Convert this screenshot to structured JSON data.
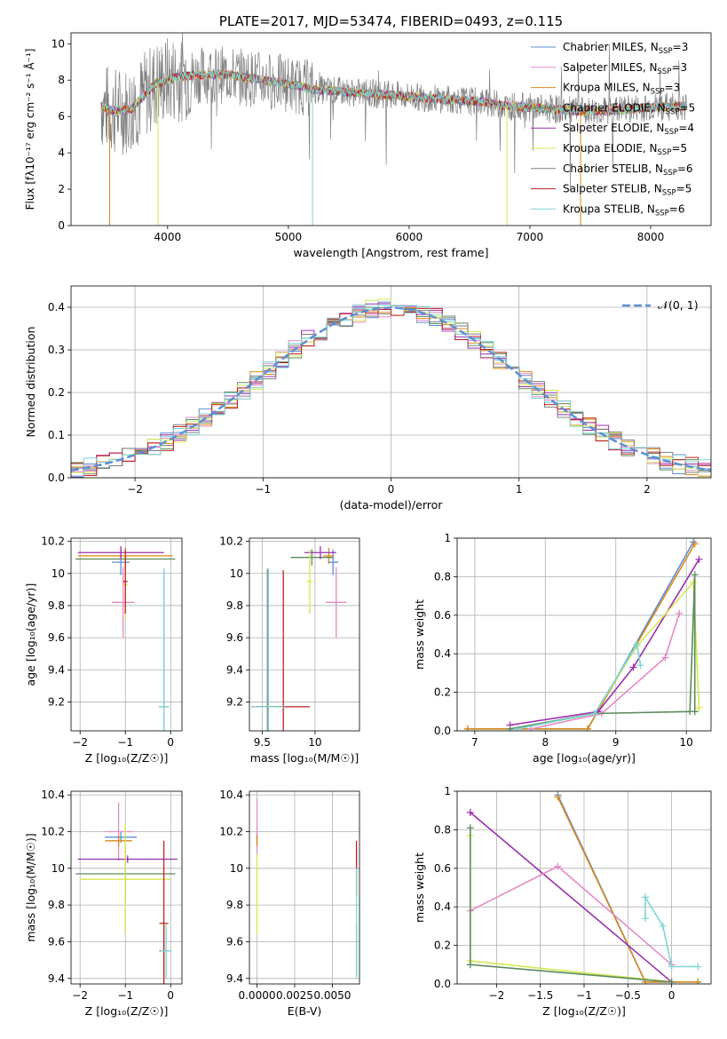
{
  "colors": {
    "Chabrier MILES": "#5b8fd6",
    "Salpeter MILES": "#e48bc6",
    "Kroupa MILES": "#d98a1a",
    "Chabrier ELODIE": "#5c8a5c",
    "Salpeter ELODIE": "#9a2fb0",
    "Kroupa ELODIE": "#d4e84e",
    "Chabrier STELIB": "#808080",
    "Salpeter STELIB": "#c02020",
    "Kroupa STELIB": "#7fd6d6",
    "normal": "#5b8fd6"
  },
  "chart_data": [
    {
      "id": "spectrum",
      "type": "line",
      "title": "PLATE=2017, MJD=53474, FIBERID=0493, z=0.115",
      "xlabel": "wavelength [Angstrom, rest frame]",
      "ylabel": "Flux [fλ10⁻¹⁷ erg cm⁻² s⁻¹ Å⁻¹]",
      "xlim": [
        3200,
        8500
      ],
      "ylim": [
        0,
        10.6
      ],
      "xticks": [
        4000,
        5000,
        6000,
        7000,
        8000
      ],
      "yticks": [
        0,
        2,
        4,
        6,
        8,
        10
      ],
      "grid": false,
      "legend_position": "top-right",
      "legend": [
        "Chabrier MILES, N_SSP=3",
        "Salpeter MILES, N_SSP=3",
        "Kroupa MILES, N_SSP=3",
        "Chabrier ELODIE, N_SSP=5",
        "Salpeter ELODIE, N_SSP=4",
        "Kroupa ELODIE, N_SSP=5",
        "Chabrier STELIB, N_SSP=6",
        "Salpeter STELIB, N_SSP=5",
        "Kroupa STELIB, N_SSP=6"
      ],
      "data_continuum": {
        "x": [
          3450,
          3550,
          3700,
          3900,
          4100,
          4300,
          4500,
          4800,
          5000,
          5200,
          5400,
          5600,
          5800,
          6000,
          6200,
          6400,
          6600,
          6800,
          7000,
          7200,
          7400,
          7600,
          7800,
          8000,
          8300
        ],
        "y": [
          6.6,
          6.3,
          6.4,
          7.8,
          8.2,
          8.3,
          8.3,
          8.0,
          7.8,
          7.5,
          7.4,
          7.3,
          7.2,
          7.1,
          7.0,
          6.9,
          6.8,
          6.6,
          6.5,
          6.4,
          6.3,
          6.3,
          6.4,
          6.5,
          6.6
        ]
      }
    },
    {
      "id": "residuals",
      "type": "line",
      "xlabel": "(data-model)/error",
      "ylabel": "Normed distribution",
      "xlim": [
        -2.5,
        2.5
      ],
      "ylim": [
        0,
        0.45
      ],
      "xticks": [
        -2,
        -1,
        0,
        1,
        2
      ],
      "yticks": [
        0.0,
        0.1,
        0.2,
        0.3,
        0.4
      ],
      "grid": true,
      "legend_position": "top-right",
      "legend": [
        "𝒩(0, 1)"
      ],
      "normal": {
        "mean": 0,
        "std": 1,
        "amplitude": 0.399
      }
    },
    {
      "id": "age-vs-Z",
      "type": "scatter",
      "xlabel": "Z [log₁₀(Z/Z☉)]",
      "ylabel": "age  [log₁₀(age/yr)]",
      "xlim": [
        -2.2,
        0.25
      ],
      "ylim": [
        9.02,
        10.22
      ],
      "xticks": [
        -2,
        -1,
        0
      ],
      "yticks": [
        9.2,
        9.4,
        9.6,
        9.8,
        10.0,
        10.2
      ],
      "grid": true,
      "points": [
        {
          "model": "Chabrier MILES",
          "x": -1.1,
          "y": 10.07,
          "xerr": 0.2,
          "yerr": 0.08
        },
        {
          "model": "Salpeter MILES",
          "x": -1.05,
          "y": 9.82,
          "xerr": 0.25,
          "yerr": 0.22
        },
        {
          "model": "Kroupa MILES",
          "x": -1.0,
          "y": 10.11,
          "xerr": 1.05,
          "yerr": 0.05
        },
        {
          "model": "Chabrier ELODIE",
          "x": -1.0,
          "y": 10.09,
          "xerr": 1.1,
          "yerr": 0.05
        },
        {
          "model": "Salpeter ELODIE",
          "x": -1.1,
          "y": 10.13,
          "xerr": 0.95,
          "yerr": 0.04
        },
        {
          "model": "Kroupa ELODIE",
          "x": -1.0,
          "y": 9.93,
          "xerr": 0.05,
          "yerr": 0.22
        },
        {
          "model": "Chabrier STELIB",
          "x": -0.15,
          "y": 9.17,
          "xerr": 0.1,
          "yerr": 0.86
        },
        {
          "model": "Salpeter STELIB",
          "x": -1.0,
          "y": 9.95,
          "xerr": 0.05,
          "yerr": 0.2
        },
        {
          "model": "Kroupa STELIB",
          "x": -0.15,
          "y": 9.17,
          "xerr": 0.12,
          "yerr": 0.86
        }
      ]
    },
    {
      "id": "age-vs-mass",
      "type": "scatter",
      "xlabel": "mass [log₁₀(M/M☉)]",
      "ylabel": "",
      "xlim": [
        9.38,
        10.42
      ],
      "ylim": [
        9.02,
        10.22
      ],
      "xticks": [
        9.5,
        10.0
      ],
      "yticks": [
        9.2,
        9.4,
        9.6,
        9.8,
        10.0,
        10.2
      ],
      "grid": true,
      "points": [
        {
          "model": "Chabrier MILES",
          "x": 10.17,
          "y": 10.07,
          "xerr": 0.05,
          "yerr": 0.08
        },
        {
          "model": "Salpeter MILES",
          "x": 10.2,
          "y": 9.82,
          "xerr": 0.1,
          "yerr": 0.22
        },
        {
          "model": "Kroupa MILES",
          "x": 10.13,
          "y": 10.11,
          "xerr": 0.05,
          "yerr": 0.05
        },
        {
          "model": "Chabrier ELODIE",
          "x": 9.97,
          "y": 10.1,
          "xerr": 0.2,
          "yerr": 0.05
        },
        {
          "model": "Salpeter ELODIE",
          "x": 10.05,
          "y": 10.13,
          "xerr": 0.15,
          "yerr": 0.04
        },
        {
          "model": "Kroupa ELODIE",
          "x": 9.95,
          "y": 9.95,
          "xerr": 0.03,
          "yerr": 0.2
        },
        {
          "model": "Chabrier STELIB",
          "x": 9.55,
          "y": 9.17,
          "xerr": 0.15,
          "yerr": 0.86
        },
        {
          "model": "Salpeter STELIB",
          "x": 9.7,
          "y": 9.17,
          "xerr": 0.25,
          "yerr": 0.85
        },
        {
          "model": "Kroupa STELIB",
          "x": 9.56,
          "y": 9.17,
          "xerr": 0.15,
          "yerr": 0.86
        }
      ]
    },
    {
      "id": "weight-vs-age",
      "type": "line",
      "xlabel": "age  [log₁₀(age/yr)]",
      "ylabel": "mass weight",
      "xlim": [
        6.75,
        10.35
      ],
      "ylim": [
        0,
        1.0
      ],
      "xticks": [
        7,
        8,
        9,
        10
      ],
      "yticks": [
        0.0,
        0.2,
        0.4,
        0.6,
        0.8,
        1.0
      ],
      "grid": true,
      "series": [
        {
          "model": "Chabrier MILES",
          "x": [
            6.9,
            8.6,
            10.1
          ],
          "y": [
            0.01,
            0.01,
            0.98
          ]
        },
        {
          "model": "Kroupa MILES",
          "x": [
            6.9,
            8.6,
            10.12
          ],
          "y": [
            0.01,
            0.01,
            0.97
          ]
        },
        {
          "model": "Salpeter ELODIE",
          "x": [
            7.5,
            8.75,
            9.25,
            10.18
          ],
          "y": [
            0.03,
            0.1,
            0.33,
            0.89
          ]
        },
        {
          "model": "Salpeter MILES",
          "x": [
            7.8,
            8.8,
            9.7,
            9.9
          ],
          "y": [
            0.01,
            0.09,
            0.38,
            0.61
          ]
        },
        {
          "model": "Kroupa ELODIE",
          "x": [
            7.6,
            8.7,
            9.3,
            10.1,
            10.18
          ],
          "y": [
            0.01,
            0.09,
            0.44,
            0.77,
            0.12
          ]
        },
        {
          "model": "Chabrier ELODIE",
          "x": [
            7.5,
            8.7,
            10.05,
            10.12,
            10.12
          ],
          "y": [
            0.01,
            0.09,
            0.1,
            0.81,
            0.1
          ]
        },
        {
          "model": "Kroupa STELIB",
          "x": [
            7.6,
            8.7,
            9.3,
            9.35
          ],
          "y": [
            0.01,
            0.09,
            0.45,
            0.34
          ]
        }
      ]
    },
    {
      "id": "mass-vs-Z",
      "type": "scatter",
      "xlabel": "Z [log₁₀(Z/Z☉)]",
      "ylabel": "mass [log₁₀(M/M☉)]",
      "xlim": [
        -2.2,
        0.25
      ],
      "ylim": [
        9.37,
        10.42
      ],
      "xticks": [
        -2,
        -1,
        0
      ],
      "yticks": [
        9.4,
        9.6,
        9.8,
        10.0,
        10.2,
        10.4
      ],
      "grid": true,
      "points": [
        {
          "model": "Chabrier MILES",
          "x": -1.1,
          "y": 10.17,
          "xerr": 0.35,
          "yerr": 0.03
        },
        {
          "model": "Salpeter MILES",
          "x": -1.15,
          "y": 10.2,
          "xerr": 0.3,
          "yerr": 0.16
        },
        {
          "model": "Kroupa MILES",
          "x": -1.15,
          "y": 10.15,
          "xerr": 0.3,
          "yerr": 0.03
        },
        {
          "model": "Chabrier ELODIE",
          "x": -1.0,
          "y": 9.97,
          "xerr": 1.1,
          "yerr": 0.15
        },
        {
          "model": "Salpeter ELODIE",
          "x": -0.95,
          "y": 10.05,
          "xerr": 1.1,
          "yerr": 0.02
        },
        {
          "model": "Kroupa ELODIE",
          "x": -1.0,
          "y": 9.94,
          "xerr": 1.0,
          "yerr": 0.3
        },
        {
          "model": "Chabrier STELIB",
          "x": -0.15,
          "y": 9.55,
          "xerr": 0.1,
          "yerr": 0.14
        },
        {
          "model": "Salpeter STELIB",
          "x": -0.15,
          "y": 9.7,
          "xerr": 0.1,
          "yerr": 0.45
        },
        {
          "model": "Kroupa STELIB",
          "x": -0.1,
          "y": 9.55,
          "xerr": 0.12,
          "yerr": 0.15
        }
      ]
    },
    {
      "id": "mass-vs-EBV",
      "type": "scatter",
      "xlabel": "E(B-V)",
      "ylabel": "",
      "xlim": [
        -0.0005,
        0.0068
      ],
      "ylim": [
        9.37,
        10.42
      ],
      "xticks": [
        0.0,
        0.0025,
        0.005
      ],
      "xtick_labels": [
        "0.0000",
        "0.0025",
        "0.0050"
      ],
      "yticks": [
        9.4,
        9.6,
        9.8,
        10.0,
        10.2,
        10.4
      ],
      "grid": true,
      "points": [
        {
          "model": "Chabrier MILES",
          "x": 0.0,
          "y": 10.17,
          "xerr": 0.0,
          "yerr": 0.03
        },
        {
          "model": "Salpeter MILES",
          "x": 0.0,
          "y": 10.22,
          "xerr": 0.0,
          "yerr": 0.16
        },
        {
          "model": "Kroupa MILES",
          "x": 0.0,
          "y": 10.15,
          "xerr": 0.0,
          "yerr": 0.03
        },
        {
          "model": "Kroupa ELODIE",
          "x": 0.0,
          "y": 9.86,
          "xerr": 0.0,
          "yerr": 0.22
        },
        {
          "model": "Salpeter STELIB",
          "x": 0.0066,
          "y": 10.0,
          "xerr": 0.0,
          "yerr": 0.15
        },
        {
          "model": "Chabrier STELIB",
          "x": 0.0066,
          "y": 9.55,
          "xerr": 0.0,
          "yerr": 0.14
        },
        {
          "model": "Kroupa STELIB",
          "x": 0.0066,
          "y": 9.7,
          "xerr": 0.0,
          "yerr": 0.3
        }
      ]
    },
    {
      "id": "weight-vs-Z",
      "type": "line",
      "xlabel": "Z [log₁₀(Z/Z☉)]",
      "ylabel": "mass weight",
      "xlim": [
        -2.45,
        0.45
      ],
      "ylim": [
        0,
        1.0
      ],
      "xticks": [
        -2.0,
        -1.5,
        -1.0,
        -0.5,
        0.0
      ],
      "yticks": [
        0.0,
        0.2,
        0.4,
        0.6,
        0.8,
        1.0
      ],
      "grid": true,
      "series": [
        {
          "model": "Chabrier MILES",
          "x": [
            -1.3,
            -0.3,
            0.3
          ],
          "y": [
            0.98,
            0.01,
            0.01
          ]
        },
        {
          "model": "Kroupa MILES",
          "x": [
            -1.3,
            -0.3,
            0.3
          ],
          "y": [
            0.97,
            0.01,
            0.01
          ]
        },
        {
          "model": "Salpeter ELODIE",
          "x": [
            -2.3,
            0.0
          ],
          "y": [
            0.89,
            0.01
          ]
        },
        {
          "model": "Salpeter MILES",
          "x": [
            -2.3,
            -1.3,
            0.0
          ],
          "y": [
            0.38,
            0.61,
            0.1
          ]
        },
        {
          "model": "Kroupa ELODIE",
          "x": [
            -2.3,
            -2.3,
            0.0
          ],
          "y": [
            0.77,
            0.12,
            0.01
          ]
        },
        {
          "model": "Chabrier ELODIE",
          "x": [
            -2.3,
            -2.3,
            0.0
          ],
          "y": [
            0.81,
            0.1,
            0.01
          ]
        },
        {
          "model": "Kroupa STELIB",
          "x": [
            -0.3,
            -0.3,
            -0.1,
            0.0,
            0.3
          ],
          "y": [
            0.34,
            0.45,
            0.3,
            0.09,
            0.09
          ]
        }
      ]
    }
  ]
}
